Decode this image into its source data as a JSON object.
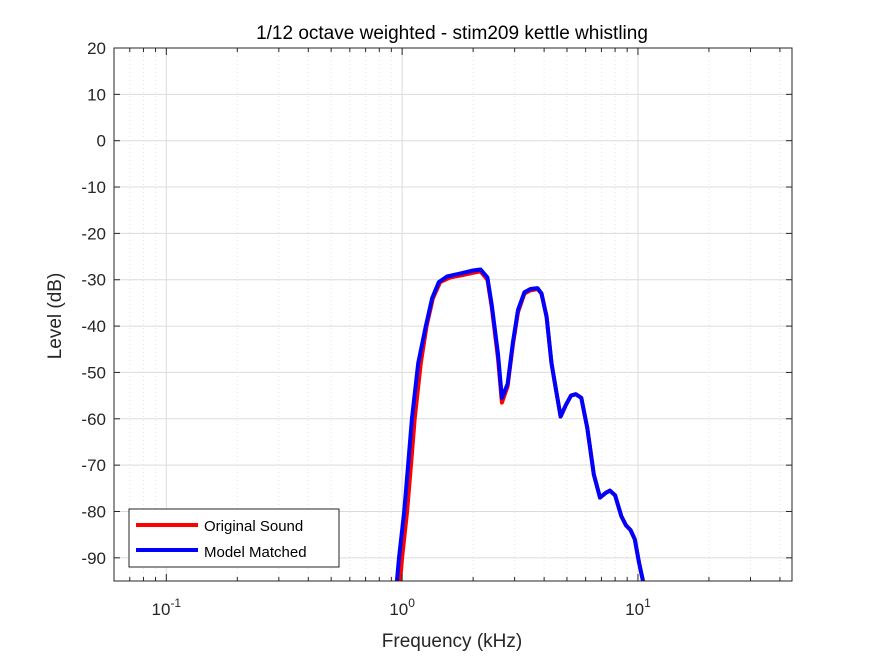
{
  "chart_data": {
    "type": "line",
    "title": "1/12 octave weighted - stim209 kettle whistling",
    "xlabel": "Frequency (kHz)",
    "ylabel": "Level (dB)",
    "xscale": "log",
    "xlim": [
      0.06,
      45
    ],
    "ylim": [
      -95,
      20
    ],
    "grid": true,
    "legend_location": "bottom-left",
    "xticks": [
      {
        "value": 0.1,
        "base": "10",
        "exp": "-1"
      },
      {
        "value": 1,
        "base": "10",
        "exp": "0"
      },
      {
        "value": 10,
        "base": "10",
        "exp": "1"
      }
    ],
    "yticks": [
      20,
      10,
      0,
      -10,
      -20,
      -30,
      -40,
      -50,
      -60,
      -70,
      -80,
      -90
    ],
    "series": [
      {
        "name": "Original Sound",
        "color": "#ff0000",
        "points": [
          [
            0.98,
            -95
          ],
          [
            1.0,
            -90
          ],
          [
            1.05,
            -80
          ],
          [
            1.09,
            -70
          ],
          [
            1.13,
            -60
          ],
          [
            1.2,
            -48
          ],
          [
            1.27,
            -40
          ],
          [
            1.35,
            -34
          ],
          [
            1.45,
            -30.5
          ],
          [
            1.6,
            -29.5
          ],
          [
            1.8,
            -29
          ],
          [
            2.0,
            -28.5
          ],
          [
            2.15,
            -28.2
          ],
          [
            2.3,
            -30
          ],
          [
            2.4,
            -36
          ],
          [
            2.55,
            -47
          ],
          [
            2.65,
            -56.5
          ],
          [
            2.8,
            -53
          ],
          [
            2.95,
            -44
          ],
          [
            3.1,
            -37
          ],
          [
            3.3,
            -33
          ],
          [
            3.5,
            -32.3
          ],
          [
            3.75,
            -32
          ],
          [
            3.9,
            -33
          ],
          [
            4.1,
            -38
          ],
          [
            4.3,
            -48
          ],
          [
            4.5,
            -54
          ],
          [
            4.7,
            -59.5
          ],
          [
            4.95,
            -57
          ],
          [
            5.2,
            -55
          ],
          [
            5.45,
            -54.7
          ],
          [
            5.75,
            -55.5
          ],
          [
            6.1,
            -62
          ],
          [
            6.5,
            -72
          ],
          [
            6.9,
            -77
          ],
          [
            7.3,
            -76
          ],
          [
            7.6,
            -75.5
          ],
          [
            8.0,
            -76.5
          ],
          [
            8.5,
            -81
          ],
          [
            8.9,
            -83
          ],
          [
            9.3,
            -84
          ],
          [
            9.7,
            -86
          ],
          [
            10.1,
            -91
          ],
          [
            10.5,
            -95
          ]
        ]
      },
      {
        "name": "Model Matched",
        "color": "#0000ff",
        "points": [
          [
            0.95,
            -95
          ],
          [
            0.97,
            -90
          ],
          [
            1.02,
            -80
          ],
          [
            1.06,
            -70
          ],
          [
            1.1,
            -60
          ],
          [
            1.17,
            -48
          ],
          [
            1.26,
            -40
          ],
          [
            1.34,
            -34
          ],
          [
            1.43,
            -30.5
          ],
          [
            1.55,
            -29.3
          ],
          [
            1.75,
            -28.7
          ],
          [
            2.0,
            -28
          ],
          [
            2.15,
            -27.8
          ],
          [
            2.3,
            -29.5
          ],
          [
            2.4,
            -35.5
          ],
          [
            2.55,
            -46
          ],
          [
            2.65,
            -55.5
          ],
          [
            2.8,
            -52.5
          ],
          [
            2.95,
            -43.5
          ],
          [
            3.1,
            -36.5
          ],
          [
            3.3,
            -32.7
          ],
          [
            3.5,
            -32
          ],
          [
            3.75,
            -31.8
          ],
          [
            3.9,
            -33
          ],
          [
            4.1,
            -38
          ],
          [
            4.3,
            -48
          ],
          [
            4.5,
            -54
          ],
          [
            4.7,
            -59.5
          ],
          [
            4.95,
            -57
          ],
          [
            5.2,
            -55
          ],
          [
            5.45,
            -54.7
          ],
          [
            5.75,
            -55.5
          ],
          [
            6.1,
            -62
          ],
          [
            6.5,
            -72
          ],
          [
            6.9,
            -77
          ],
          [
            7.3,
            -76
          ],
          [
            7.6,
            -75.5
          ],
          [
            8.0,
            -76.5
          ],
          [
            8.5,
            -81
          ],
          [
            8.9,
            -83
          ],
          [
            9.3,
            -84
          ],
          [
            9.7,
            -86
          ],
          [
            10.1,
            -91
          ],
          [
            10.5,
            -95
          ]
        ]
      }
    ]
  }
}
